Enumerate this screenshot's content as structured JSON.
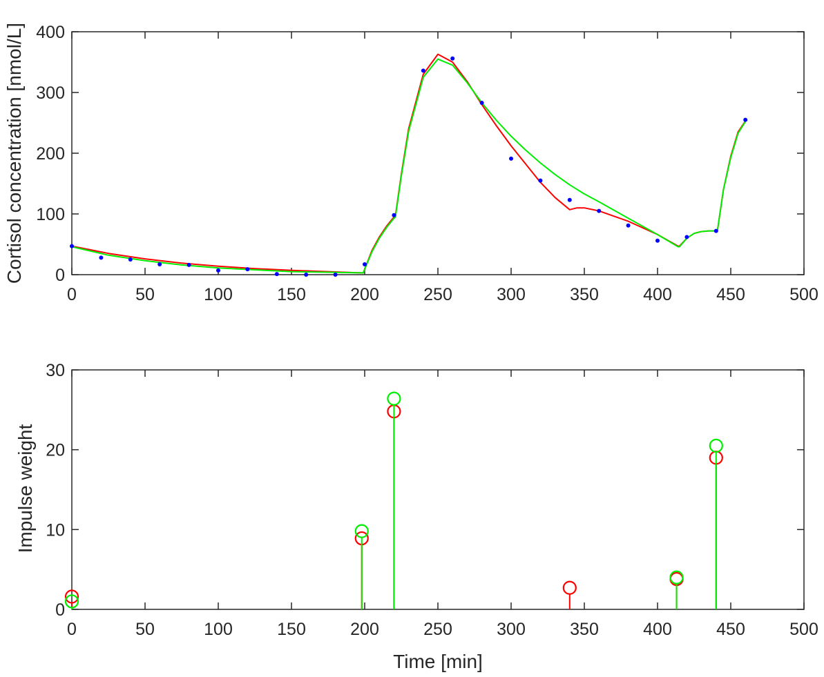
{
  "chart_data": [
    {
      "type": "line",
      "title": "",
      "xlabel": "",
      "ylabel": "Cortisol concentration [nmol/L]",
      "xlim": [
        0,
        500
      ],
      "ylim": [
        0,
        400
      ],
      "xticks": [
        "0",
        "50",
        "100",
        "150",
        "200",
        "250",
        "300",
        "350",
        "400",
        "450",
        "500"
      ],
      "yticks": [
        "0",
        "100",
        "200",
        "300",
        "400"
      ],
      "grid": false,
      "legend": "none",
      "series": [
        {
          "kind": "scatter",
          "color": "#0000ff",
          "x": [
            0,
            20,
            40,
            60,
            80,
            100,
            120,
            140,
            160,
            180,
            200,
            220,
            240,
            260,
            280,
            300,
            320,
            340,
            360,
            380,
            400,
            420,
            440,
            460
          ],
          "y": [
            47,
            28,
            25,
            17,
            16,
            7,
            9,
            1,
            0,
            0,
            17,
            98,
            336,
            356,
            283,
            191,
            155,
            123,
            105,
            81,
            56,
            62,
            72,
            255
          ]
        },
        {
          "kind": "line",
          "color": "#ff0000",
          "x": [
            0,
            25,
            50,
            75,
            100,
            125,
            150,
            175,
            198,
            199,
            205,
            210,
            215,
            220,
            221,
            225,
            230,
            240,
            250,
            260,
            270,
            280,
            290,
            300,
            310,
            320,
            330,
            340,
            345,
            350,
            360,
            380,
            400,
            414,
            415,
            420,
            425,
            430,
            435,
            440,
            441,
            445,
            450,
            455,
            460
          ],
          "y": [
            47,
            35,
            26,
            19,
            14,
            10,
            7,
            5,
            3,
            3,
            40,
            62,
            80,
            95,
            97,
            165,
            240,
            330,
            363,
            350,
            318,
            280,
            245,
            212,
            182,
            152,
            127,
            107,
            110,
            110,
            105,
            88,
            66,
            47,
            47,
            60,
            68,
            71,
            72,
            72,
            74,
            140,
            195,
            235,
            253
          ]
        },
        {
          "kind": "line",
          "color": "#00ee00",
          "x": [
            0,
            25,
            50,
            75,
            100,
            125,
            150,
            175,
            198,
            199,
            205,
            210,
            215,
            220,
            221,
            225,
            230,
            240,
            250,
            260,
            270,
            280,
            290,
            300,
            310,
            320,
            330,
            340,
            350,
            360,
            380,
            400,
            414,
            415,
            420,
            425,
            430,
            435,
            440,
            441,
            445,
            450,
            455,
            460
          ],
          "y": [
            46,
            32,
            23,
            16,
            11,
            8,
            5,
            4,
            3,
            3,
            38,
            60,
            78,
            93,
            95,
            162,
            236,
            325,
            355,
            345,
            316,
            283,
            254,
            228,
            205,
            184,
            165,
            148,
            133,
            120,
            93,
            66,
            46,
            46,
            60,
            68,
            71,
            72,
            72,
            74,
            140,
            193,
            233,
            252
          ]
        }
      ]
    },
    {
      "type": "stem",
      "title": "",
      "xlabel": "Time [min]",
      "ylabel": "Impulse weight",
      "xlim": [
        0,
        500
      ],
      "ylim": [
        0,
        30
      ],
      "xticks": [
        "0",
        "50",
        "100",
        "150",
        "200",
        "250",
        "300",
        "350",
        "400",
        "450",
        "500"
      ],
      "yticks": [
        "0",
        "10",
        "20",
        "30"
      ],
      "grid": false,
      "legend": "none",
      "series": [
        {
          "color": "#ff0000",
          "x": [
            0,
            198,
            220,
            340,
            413,
            440
          ],
          "y": [
            1.6,
            8.9,
            24.8,
            2.7,
            3.8,
            19.0
          ]
        },
        {
          "color": "#00ee00",
          "x": [
            0,
            198,
            220,
            413,
            440
          ],
          "y": [
            1.0,
            9.8,
            26.4,
            4.0,
            20.5
          ]
        }
      ]
    }
  ]
}
